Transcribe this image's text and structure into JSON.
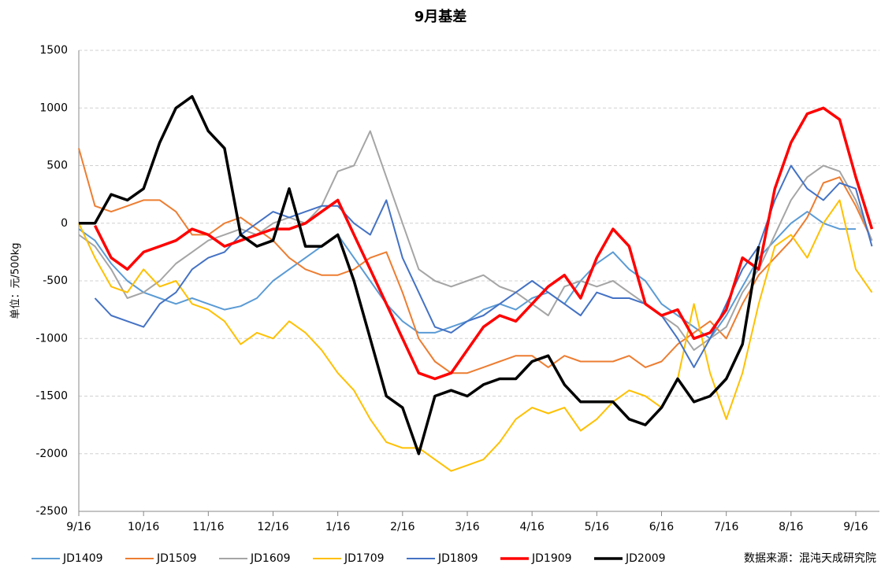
{
  "chart_data": {
    "type": "line",
    "title": "9月基差",
    "y_label": "单位：元/500kg",
    "source": "数据来源：混沌天成研究院",
    "categories": [
      "9/16",
      null,
      null,
      null,
      "10/16",
      null,
      null,
      null,
      "11/16",
      null,
      null,
      null,
      "12/16",
      null,
      null,
      null,
      "1/16",
      null,
      null,
      null,
      "2/16",
      null,
      null,
      null,
      "3/16",
      null,
      null,
      null,
      "4/16",
      null,
      null,
      null,
      "5/16",
      null,
      null,
      null,
      "6/16",
      null,
      null,
      null,
      "7/16",
      null,
      null,
      null,
      "8/16",
      null,
      null,
      null,
      "9/16",
      null
    ],
    "ylim": [
      -2500,
      1500
    ],
    "yticks": [
      -2500,
      -2000,
      -1500,
      -1000,
      -500,
      0,
      500,
      1000,
      1500
    ],
    "grid": true,
    "series": [
      {
        "name": "JD1409",
        "color": "#5b9bd5",
        "linewidth": 2,
        "values": [
          -50,
          -150,
          -350,
          -500,
          -600,
          -650,
          -700,
          -650,
          -700,
          -750,
          -720,
          -650,
          -500,
          -400,
          -300,
          -200,
          -100,
          -300,
          -500,
          -700,
          -850,
          -950,
          -950,
          -900,
          -850,
          -750,
          -700,
          -750,
          -650,
          -600,
          -700,
          -500,
          -350,
          -250,
          -400,
          -500,
          -700,
          -800,
          -900,
          -1000,
          -800,
          -550,
          -300,
          -150,
          0,
          100,
          0,
          -50,
          -50,
          null
        ]
      },
      {
        "name": "JD1509",
        "color": "#ed7d31",
        "linewidth": 2,
        "values": [
          650,
          150,
          100,
          150,
          200,
          200,
          100,
          -100,
          -100,
          0,
          50,
          -50,
          -150,
          -300,
          -400,
          -450,
          -450,
          -400,
          -300,
          -250,
          -600,
          -1000,
          -1200,
          -1300,
          -1300,
          -1250,
          -1200,
          -1150,
          -1150,
          -1250,
          -1150,
          -1200,
          -1200,
          -1200,
          -1150,
          -1250,
          -1200,
          -1050,
          -950,
          -850,
          -1000,
          -700,
          -450,
          -300,
          -150,
          50,
          350,
          400,
          150,
          -150
        ]
      },
      {
        "name": "JD1609",
        "color": "#a5a5a5",
        "linewidth": 2,
        "values": [
          -100,
          -200,
          -400,
          -650,
          -600,
          -500,
          -350,
          -250,
          -150,
          -100,
          -50,
          -100,
          0,
          50,
          0,
          150,
          450,
          500,
          800,
          400,
          0,
          -400,
          -500,
          -550,
          -500,
          -450,
          -550,
          -600,
          -700,
          -800,
          -550,
          -500,
          -550,
          -500,
          -600,
          -700,
          -800,
          -900,
          -1100,
          -1000,
          -900,
          -600,
          -400,
          -100,
          200,
          400,
          500,
          450,
          200,
          -150
        ]
      },
      {
        "name": "JD1709",
        "color": "#ffc000",
        "linewidth": 2,
        "values": [
          0,
          -300,
          -550,
          -600,
          -400,
          -550,
          -500,
          -700,
          -750,
          -850,
          -1050,
          -950,
          -1000,
          -850,
          -950,
          -1100,
          -1300,
          -1450,
          -1700,
          -1900,
          -1950,
          -1950,
          -2050,
          -2150,
          -2100,
          -2050,
          -1900,
          -1700,
          -1600,
          -1650,
          -1600,
          -1800,
          -1700,
          -1550,
          -1450,
          -1500,
          -1600,
          -1350,
          -700,
          -1300,
          -1700,
          -1300,
          -700,
          -200,
          -100,
          -300,
          0,
          200,
          -400,
          -600
        ]
      },
      {
        "name": "JD1809",
        "color": "#4472c4",
        "linewidth": 2,
        "values": [
          null,
          -650,
          -800,
          -850,
          -900,
          -700,
          -600,
          -400,
          -300,
          -250,
          -100,
          0,
          100,
          50,
          100,
          150,
          150,
          0,
          -100,
          200,
          -300,
          -600,
          -900,
          -950,
          -850,
          -800,
          -700,
          -600,
          -500,
          -600,
          -700,
          -800,
          -600,
          -650,
          -650,
          -700,
          -800,
          -1000,
          -1250,
          -1000,
          -700,
          -400,
          -200,
          200,
          500,
          300,
          200,
          350,
          300,
          -200
        ]
      },
      {
        "name": "JD1909",
        "color": "#ff0000",
        "linewidth": 3.5,
        "values": [
          null,
          -20,
          -300,
          -400,
          -250,
          -200,
          -150,
          -50,
          -100,
          -200,
          -150,
          -100,
          -50,
          -50,
          0,
          100,
          200,
          -100,
          -400,
          -700,
          -1000,
          -1300,
          -1350,
          -1300,
          -1100,
          -900,
          -800,
          -850,
          -700,
          -550,
          -450,
          -650,
          -300,
          -50,
          -200,
          -700,
          -800,
          -750,
          -1000,
          -950,
          -750,
          -300,
          -400,
          300,
          700,
          950,
          1000,
          900,
          400,
          -50
        ]
      },
      {
        "name": "JD2009",
        "color": "#000000",
        "linewidth": 3.5,
        "values": [
          0,
          0,
          250,
          200,
          300,
          700,
          1000,
          1100,
          800,
          650,
          -100,
          -200,
          -150,
          300,
          -200,
          -200,
          -100,
          -500,
          -1000,
          -1500,
          -1600,
          -2000,
          -1500,
          -1450,
          -1500,
          -1400,
          -1350,
          -1350,
          -1200,
          -1150,
          -1400,
          -1550,
          -1550,
          -1550,
          -1700,
          -1750,
          -1600,
          -1350,
          -1550,
          -1500,
          -1350,
          -1050,
          -200,
          null,
          null,
          null,
          null,
          null,
          null,
          null
        ]
      }
    ]
  }
}
